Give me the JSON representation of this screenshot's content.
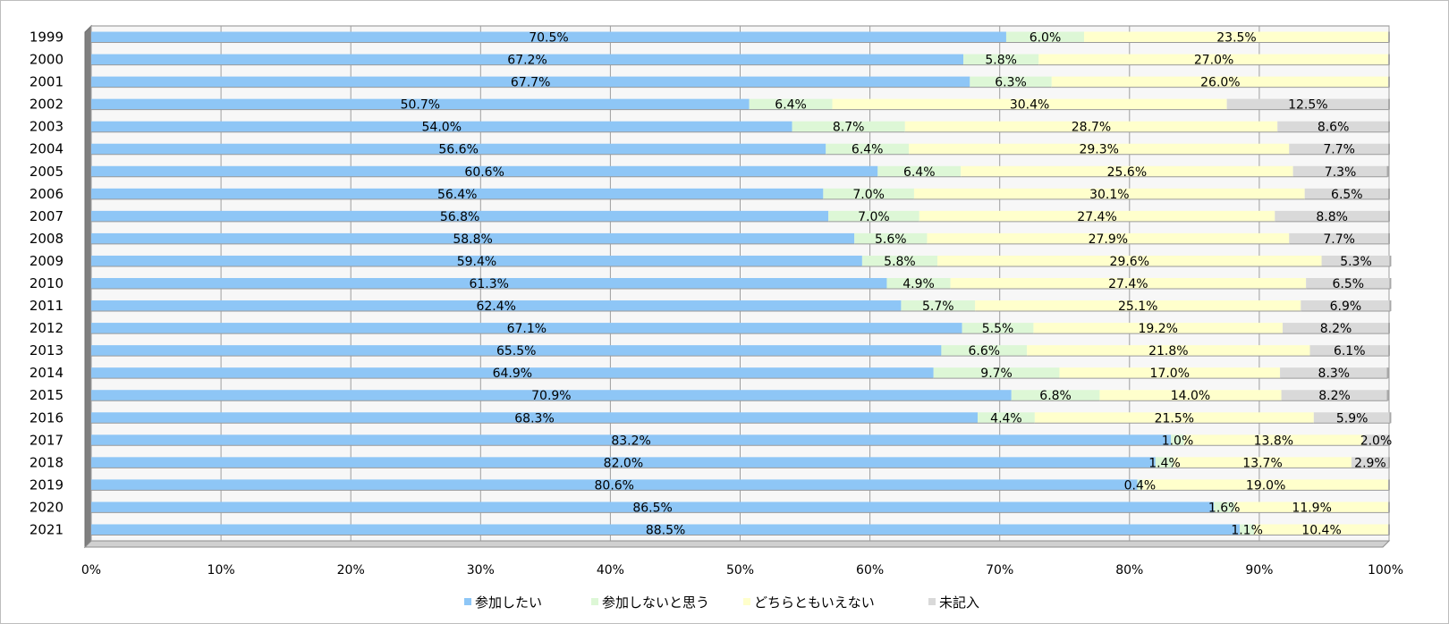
{
  "chart_data": {
    "type": "bar",
    "orientation": "horizontal",
    "stacked": "percent",
    "categories": [
      "1999",
      "2000",
      "2001",
      "2002",
      "2003",
      "2004",
      "2005",
      "2006",
      "2007",
      "2008",
      "2009",
      "2010",
      "2011",
      "2012",
      "2013",
      "2014",
      "2015",
      "2016",
      "2017",
      "2018",
      "2019",
      "2020",
      "2021"
    ],
    "series": [
      {
        "name": "参加したい",
        "color": "#8ec6f6",
        "values": [
          70.5,
          67.2,
          67.7,
          50.7,
          54.0,
          56.6,
          60.6,
          56.4,
          56.8,
          58.8,
          59.4,
          61.3,
          62.4,
          67.1,
          65.5,
          64.9,
          70.9,
          68.3,
          83.2,
          82.0,
          80.6,
          86.5,
          88.5
        ],
        "labels": [
          "70.5%",
          "67.2%",
          "67.7%",
          "50.7%",
          "54.0%",
          "56.6%",
          "60.6%",
          "56.4%",
          "56.8%",
          "58.8%",
          "59.4%",
          "61.3%",
          "62.4%",
          "67.1%",
          "65.5%",
          "64.9%",
          "70.9%",
          "68.3%",
          "83.2%",
          "82.0%",
          "80.6%",
          "86.5%",
          "88.5%"
        ]
      },
      {
        "name": "参加しないと思う",
        "color": "#ddf7d6",
        "values": [
          6.0,
          5.8,
          6.3,
          6.4,
          8.7,
          6.4,
          6.4,
          7.0,
          7.0,
          5.6,
          5.8,
          4.9,
          5.7,
          5.5,
          6.6,
          9.7,
          6.8,
          4.4,
          1.0,
          1.4,
          0.4,
          1.6,
          1.1
        ],
        "labels": [
          "6.0%",
          "5.8%",
          "6.3%",
          "6.4%",
          "8.7%",
          "6.4%",
          "6.4%",
          "7.0%",
          "7.0%",
          "5.6%",
          "5.8%",
          "4.9%",
          "5.7%",
          "5.5%",
          "6.6%",
          "9.7%",
          "6.8%",
          "4.4%",
          "1.0%",
          "1.4%",
          "0.4%",
          "1.6%",
          "1.1%"
        ]
      },
      {
        "name": "どちらともいえない",
        "color": "#ffffcc",
        "values": [
          23.5,
          27.0,
          26.0,
          30.4,
          28.7,
          29.3,
          25.6,
          30.1,
          27.4,
          27.9,
          29.6,
          27.4,
          25.1,
          19.2,
          21.8,
          17.0,
          14.0,
          21.5,
          13.8,
          13.7,
          19.0,
          11.9,
          10.4
        ],
        "labels": [
          "23.5%",
          "27.0%",
          "26.0%",
          "30.4%",
          "28.7%",
          "29.3%",
          "25.6%",
          "30.1%",
          "27.4%",
          "27.9%",
          "29.6%",
          "27.4%",
          "25.1%",
          "19.2%",
          "21.8%",
          "17.0%",
          "14.0%",
          "21.5%",
          "13.8%",
          "13.7%",
          "19.0%",
          "11.9%",
          "10.4%"
        ]
      },
      {
        "name": "未記入",
        "color": "#d9d9d9",
        "values": [
          0,
          0,
          0,
          12.5,
          8.6,
          7.7,
          7.3,
          6.5,
          8.8,
          7.7,
          5.3,
          6.5,
          6.9,
          8.2,
          6.1,
          8.3,
          8.2,
          5.9,
          2.0,
          2.9,
          0,
          0,
          0
        ],
        "labels": [
          "",
          "",
          "",
          "12.5%",
          "8.6%",
          "7.7%",
          "7.3%",
          "6.5%",
          "8.8%",
          "7.7%",
          "5.3%",
          "6.5%",
          "6.9%",
          "8.2%",
          "6.1%",
          "8.3%",
          "8.2%",
          "5.9%",
          "2.0%",
          "2.9%",
          "",
          "",
          ""
        ]
      }
    ],
    "xlim": [
      0,
      100
    ],
    "x_ticks": [
      "0%",
      "10%",
      "20%",
      "30%",
      "40%",
      "50%",
      "60%",
      "70%",
      "80%",
      "90%",
      "100%"
    ],
    "grid": true,
    "legend_position": "bottom",
    "title": "",
    "xlabel": "",
    "ylabel": ""
  }
}
